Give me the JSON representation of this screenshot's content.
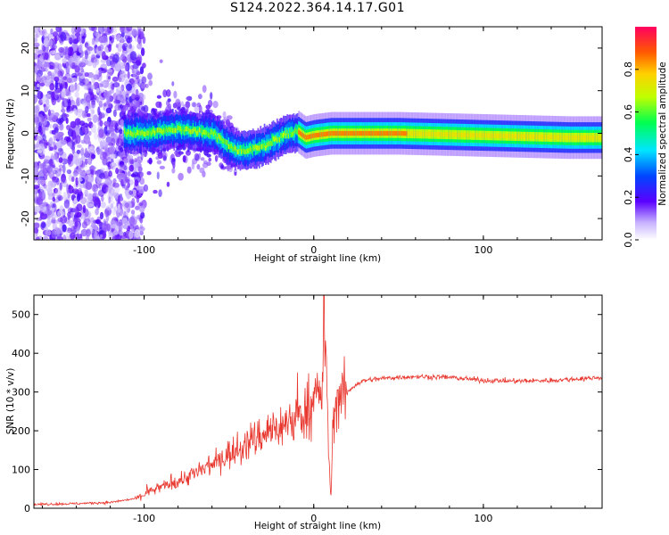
{
  "title": "S124.2022.364.14.17.G01",
  "colorbar": {
    "label": "Normalized spectral amplitude",
    "ticks": [
      "0.0",
      "0.2",
      "0.4",
      "0.6",
      "0.8"
    ],
    "range": [
      0,
      1
    ]
  },
  "chart_data": [
    {
      "type": "heatmap",
      "title": "",
      "xlabel": "Height of straight line (km)",
      "ylabel": "Frequency (Hz)",
      "xlim": [
        -165,
        170
      ],
      "ylim": [
        -25,
        25
      ],
      "xticks": [
        "-100",
        "0",
        "100"
      ],
      "yticks": [
        "-20",
        "-10",
        "0",
        "10",
        "20"
      ],
      "ridge": {
        "x": [
          -110,
          -100,
          -90,
          -80,
          -70,
          -60,
          -55,
          -50,
          -45,
          -40,
          -35,
          -30,
          -25,
          -20,
          -15,
          -10,
          -5,
          0,
          10,
          20,
          50,
          100,
          150,
          170
        ],
        "y": [
          0,
          0,
          0.5,
          1,
          0.5,
          0,
          -1.5,
          -3,
          -4,
          -4,
          -3.5,
          -3,
          -2,
          -1,
          0,
          0.5,
          -1,
          -0.5,
          0,
          0,
          0,
          -0.5,
          -1,
          -1
        ]
      }
    },
    {
      "type": "line",
      "title": "",
      "xlabel": "Height of straight line (km)",
      "ylabel": "SNR (10 * v/v)",
      "xlim": [
        -165,
        170
      ],
      "ylim": [
        0,
        550
      ],
      "xticks": [
        "-100",
        "0",
        "100"
      ],
      "yticks": [
        "0",
        "100",
        "200",
        "300",
        "400",
        "500"
      ],
      "series": [
        {
          "color": "#e8372e",
          "x": [
            -165,
            -140,
            -120,
            -105,
            -100,
            -90,
            -80,
            -70,
            -60,
            -55,
            -50,
            -45,
            -40,
            -35,
            -30,
            -25,
            -20,
            -15,
            -10,
            -5,
            0,
            3,
            5,
            6,
            8,
            10,
            12,
            15,
            20,
            25,
            30,
            40,
            50,
            60,
            80,
            100,
            120,
            140,
            160,
            170
          ],
          "y": [
            10,
            12,
            15,
            25,
            35,
            55,
            70,
            90,
            110,
            130,
            140,
            150,
            165,
            180,
            190,
            205,
            210,
            220,
            235,
            250,
            275,
            290,
            300,
            545,
            250,
            20,
            260,
            290,
            300,
            320,
            330,
            335,
            338,
            340,
            338,
            330,
            328,
            330,
            335,
            338
          ]
        }
      ],
      "annotations": {
        "spike": {
          "x": 6,
          "y": 545
        },
        "dip": {
          "x": 10,
          "y": 20
        }
      }
    }
  ]
}
